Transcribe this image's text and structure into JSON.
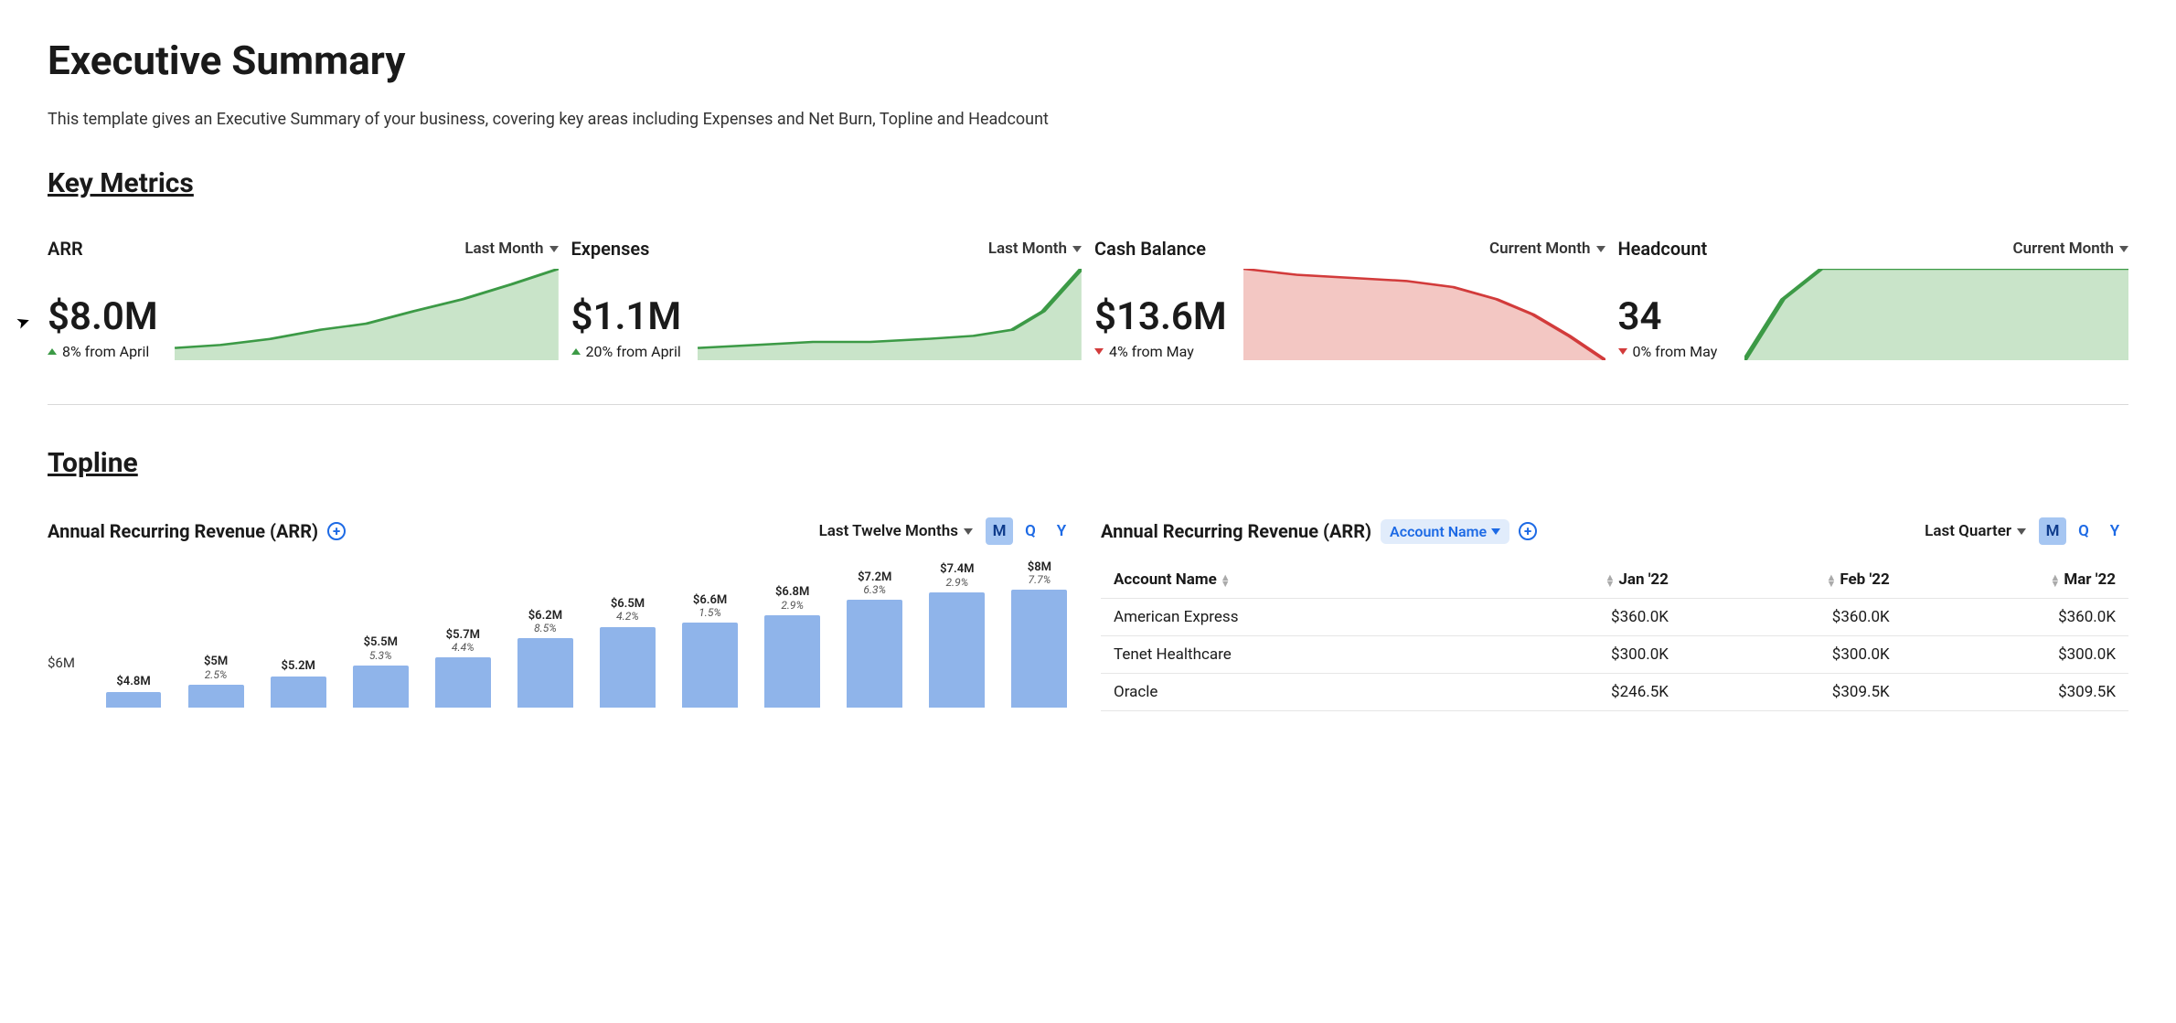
{
  "page": {
    "title": "Executive Summary",
    "subtitle": "This template gives an Executive Summary of your business, covering key areas including Expenses and Net Burn, Topline and Headcount"
  },
  "colors": {
    "green_fill": "#c9e4c9",
    "green_stroke": "#3c9a46",
    "red_fill": "#f3c7c3",
    "red_stroke": "#d23b3b",
    "bar_fill": "#8fb4ea",
    "accent_blue": "#1d6ae5",
    "pill_bg": "#e1ecfb"
  },
  "key_metrics": {
    "heading": "Key Metrics",
    "cards": [
      {
        "label": "ARR",
        "period": "Last Month",
        "value": "$8.0M",
        "delta_text": "8% from April",
        "delta_dir": "up",
        "spark_color": "green",
        "spark_points": [
          0,
          26,
          12,
          25,
          25,
          23,
          38,
          20,
          50,
          18,
          62,
          14,
          75,
          10,
          88,
          5,
          100,
          0
        ]
      },
      {
        "label": "Expenses",
        "period": "Last Month",
        "value": "$1.1M",
        "delta_text": "20% from April",
        "delta_dir": "up",
        "spark_color": "green",
        "spark_points": [
          0,
          26,
          15,
          25,
          30,
          24,
          45,
          24,
          60,
          23,
          72,
          22,
          82,
          20,
          90,
          14,
          100,
          0
        ]
      },
      {
        "label": "Cash Balance",
        "period": "Current Month",
        "value": "$13.6M",
        "delta_text": "4% from May",
        "delta_dir": "down",
        "spark_color": "red",
        "spark_points": [
          0,
          0,
          15,
          2,
          30,
          3,
          45,
          4,
          58,
          6,
          70,
          10,
          80,
          15,
          90,
          22,
          100,
          30
        ]
      },
      {
        "label": "Headcount",
        "period": "Current Month",
        "value": "34",
        "delta_text": "0% from May",
        "delta_dir": "down",
        "spark_color": "green",
        "spark_points": [
          0,
          30,
          10,
          10,
          20,
          0,
          100,
          0
        ]
      }
    ]
  },
  "topline": {
    "heading": "Topline",
    "arr_chart": {
      "title": "Annual Recurring Revenue (ARR)",
      "period": "Last Twelve Months",
      "granularity": [
        "M",
        "Q",
        "Y"
      ],
      "active_gran": "M",
      "y_ticks": [
        {
          "v": 6,
          "label": "$6M"
        }
      ],
      "y_max": 8.2,
      "y_min": 4.4,
      "bars": [
        {
          "value_label": "$4.8M",
          "pct_label": "",
          "value": 4.8
        },
        {
          "value_label": "$5M",
          "pct_label": "2.5%",
          "value": 5.0
        },
        {
          "value_label": "$5.2M",
          "pct_label": "",
          "value": 5.2
        },
        {
          "value_label": "$5.5M",
          "pct_label": "5.3%",
          "value": 5.5
        },
        {
          "value_label": "$5.7M",
          "pct_label": "4.4%",
          "value": 5.7
        },
        {
          "value_label": "$6.2M",
          "pct_label": "8.5%",
          "value": 6.2
        },
        {
          "value_label": "$6.5M",
          "pct_label": "4.2%",
          "value": 6.5
        },
        {
          "value_label": "$6.6M",
          "pct_label": "1.5%",
          "value": 6.6
        },
        {
          "value_label": "$6.8M",
          "pct_label": "2.9%",
          "value": 6.8
        },
        {
          "value_label": "$7.2M",
          "pct_label": "6.3%",
          "value": 7.2
        },
        {
          "value_label": "$7.4M",
          "pct_label": "2.9%",
          "value": 7.4
        },
        {
          "value_label": "$8M",
          "pct_label": "7.7%",
          "value": 8.0
        }
      ]
    },
    "arr_table": {
      "title": "Annual Recurring Revenue (ARR)",
      "filter_label": "Account Name",
      "period": "Last Quarter",
      "granularity": [
        "M",
        "Q",
        "Y"
      ],
      "active_gran": "M",
      "columns": [
        "Account Name",
        "Jan '22",
        "Feb '22",
        "Mar '22"
      ],
      "rows": [
        [
          "American Express",
          "$360.0K",
          "$360.0K",
          "$360.0K"
        ],
        [
          "Tenet Healthcare",
          "$300.0K",
          "$300.0K",
          "$300.0K"
        ],
        [
          "Oracle",
          "$246.5K",
          "$309.5K",
          "$309.5K"
        ]
      ]
    }
  }
}
